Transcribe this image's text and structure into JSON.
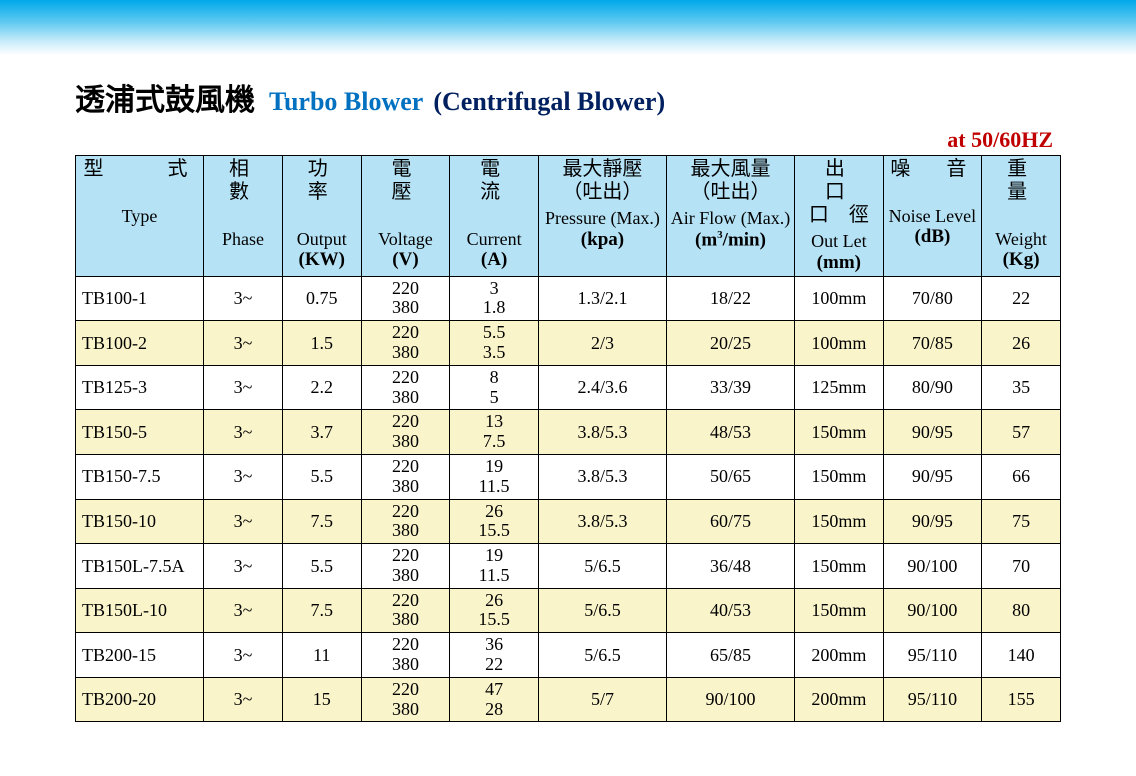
{
  "title": {
    "cn": "透浦式鼓風機",
    "en1": "Turbo Blower",
    "en2": "(Centrifugal Blower)",
    "freq": "at  50/60HZ"
  },
  "colors": {
    "banner_top": "#00a8ea",
    "banner_bottom": "#ffffff",
    "header_bg": "#b6e2f5",
    "alt_row_bg": "#faf4cb",
    "title_en1": "#0070c0",
    "title_en2": "#002060",
    "freq": "#c00000",
    "border": "#000000",
    "text": "#000000"
  },
  "table": {
    "col_widths_pct": [
      13,
      8,
      8,
      9,
      9,
      13,
      13,
      9,
      10,
      8
    ],
    "columns": [
      {
        "cn1": "型　　式",
        "cn2": "",
        "en": "Type",
        "unit": ""
      },
      {
        "cn1": "相　數",
        "cn2": "",
        "en": "Phase",
        "unit": ""
      },
      {
        "cn1": "功　率",
        "cn2": "",
        "en": "Output",
        "unit": "(KW)"
      },
      {
        "cn1": "電　壓",
        "cn2": "",
        "en": "Voltage",
        "unit": "(V)"
      },
      {
        "cn1": "電　流",
        "cn2": "",
        "en": "Current",
        "unit": "(A)"
      },
      {
        "cn1": "最大靜壓",
        "cn2": "（吐出）",
        "en": "Pressure (Max.)",
        "unit": "(kpa)"
      },
      {
        "cn1": "最大風量",
        "cn2": "（吐出）",
        "en": "Air Flow (Max.)",
        "unit": "(m³/min)"
      },
      {
        "cn1": "出　口",
        "cn2": "口　徑",
        "en": "Out Let",
        "unit": "(mm)"
      },
      {
        "cn1": "噪　音",
        "cn2": "",
        "en": "Noise  Level",
        "unit": "(dB)"
      },
      {
        "cn1": "重　量",
        "cn2": "",
        "en": "Weight",
        "unit": "(Kg)"
      }
    ],
    "rows": [
      {
        "type": "TB100-1",
        "phase": "3~",
        "output": "0.75",
        "voltage": [
          "220",
          "380"
        ],
        "current": [
          "3",
          "1.8"
        ],
        "pressure": "1.3/2.1",
        "airflow": "18/22",
        "outlet": "100mm",
        "noise": "70/80",
        "weight": "22"
      },
      {
        "type": "TB100-2",
        "phase": "3~",
        "output": "1.5",
        "voltage": [
          "220",
          "380"
        ],
        "current": [
          "5.5",
          "3.5"
        ],
        "pressure": "2/3",
        "airflow": "20/25",
        "outlet": "100mm",
        "noise": "70/85",
        "weight": "26"
      },
      {
        "type": "TB125-3",
        "phase": "3~",
        "output": "2.2",
        "voltage": [
          "220",
          "380"
        ],
        "current": [
          "8",
          "5"
        ],
        "pressure": "2.4/3.6",
        "airflow": "33/39",
        "outlet": "125mm",
        "noise": "80/90",
        "weight": "35"
      },
      {
        "type": "TB150-5",
        "phase": "3~",
        "output": "3.7",
        "voltage": [
          "220",
          "380"
        ],
        "current": [
          "13",
          "7.5"
        ],
        "pressure": "3.8/5.3",
        "airflow": "48/53",
        "outlet": "150mm",
        "noise": "90/95",
        "weight": "57"
      },
      {
        "type": "TB150-7.5",
        "phase": "3~",
        "output": "5.5",
        "voltage": [
          "220",
          "380"
        ],
        "current": [
          "19",
          "11.5"
        ],
        "pressure": "3.8/5.3",
        "airflow": "50/65",
        "outlet": "150mm",
        "noise": "90/95",
        "weight": "66"
      },
      {
        "type": "TB150-10",
        "phase": "3~",
        "output": "7.5",
        "voltage": [
          "220",
          "380"
        ],
        "current": [
          "26",
          "15.5"
        ],
        "pressure": "3.8/5.3",
        "airflow": "60/75",
        "outlet": "150mm",
        "noise": "90/95",
        "weight": "75"
      },
      {
        "type": "TB150L-7.5A",
        "phase": "3~",
        "output": "5.5",
        "voltage": [
          "220",
          "380"
        ],
        "current": [
          "19",
          "11.5"
        ],
        "pressure": "5/6.5",
        "airflow": "36/48",
        "outlet": "150mm",
        "noise": "90/100",
        "weight": "70"
      },
      {
        "type": "TB150L-10",
        "phase": "3~",
        "output": "7.5",
        "voltage": [
          "220",
          "380"
        ],
        "current": [
          "26",
          "15.5"
        ],
        "pressure": "5/6.5",
        "airflow": "40/53",
        "outlet": "150mm",
        "noise": "90/100",
        "weight": "80"
      },
      {
        "type": "TB200-15",
        "phase": "3~",
        "output": "11",
        "voltage": [
          "220",
          "380"
        ],
        "current": [
          "36",
          "22"
        ],
        "pressure": "5/6.5",
        "airflow": "65/85",
        "outlet": "200mm",
        "noise": "95/110",
        "weight": "140"
      },
      {
        "type": "TB200-20",
        "phase": "3~",
        "output": "15",
        "voltage": [
          "220",
          "380"
        ],
        "current": [
          "47",
          "28"
        ],
        "pressure": "5/7",
        "airflow": "90/100",
        "outlet": "200mm",
        "noise": "95/110",
        "weight": "155"
      }
    ]
  }
}
